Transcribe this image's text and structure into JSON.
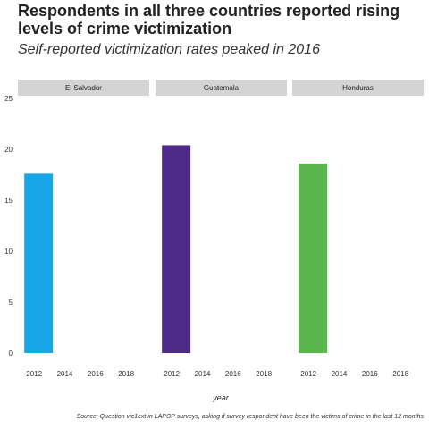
{
  "chart_data": {
    "type": "bar",
    "title": "Respondents in all three countries reported rising levels of crime victimization",
    "subtitle": "Self-reported victimization rates peaked in 2016",
    "xlabel": "year",
    "ylabel": "",
    "source": "Source: Question vic1ext in LAPOP surveys, asking if survey respondent have been the victims of crime in the last 12 months",
    "ylim": [
      0,
      25
    ],
    "yticks": [
      "0",
      "5",
      "10",
      "15",
      "20",
      "25"
    ],
    "xlim": [
      2011.5,
      2020
    ],
    "xticks": [
      "2012",
      "2014",
      "2016",
      "2018"
    ],
    "panels": [
      {
        "name": "El Salvador",
        "color": "#17a7e8",
        "x": [
          2012
        ],
        "values": [
          17.6
        ]
      },
      {
        "name": "Guatemala",
        "color": "#4e2a87",
        "x": [
          2012
        ],
        "values": [
          20.4
        ]
      },
      {
        "name": "Honduras",
        "color": "#58b64c",
        "x": [
          2012
        ],
        "values": [
          18.6
        ]
      }
    ]
  }
}
